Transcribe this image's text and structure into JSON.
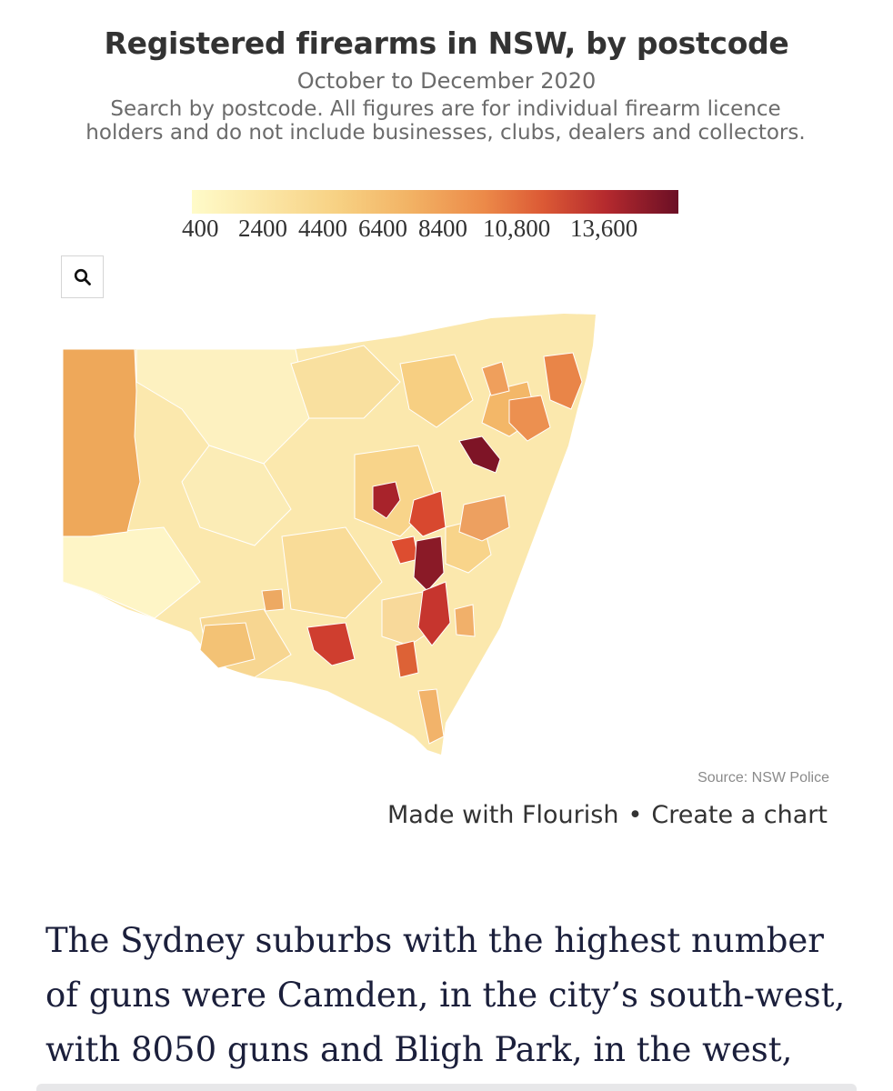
{
  "chart": {
    "title": "Registered firearms in NSW, by postcode",
    "subtitle": "October to December 2020",
    "description": "Search by postcode. All figures are for individual firearm licence holders and do not include businesses, clubs, dealers and collectors.",
    "source": "Source: NSW Police"
  },
  "legend": {
    "labels": [
      "400",
      "2400",
      "4400",
      "6400",
      "8400",
      "10,800",
      "13,600"
    ],
    "colors": [
      "#fffbc9",
      "#fbe2a0",
      "#f6c877",
      "#f0a458",
      "#e7733e",
      "#d4442f",
      "#a01f2c",
      "#6b0f25"
    ]
  },
  "search": {
    "icon": "search-icon"
  },
  "footer": {
    "made_with": "Made with Flourish",
    "separator": "•",
    "create": "Create a chart"
  },
  "article": {
    "text": "The Sydney suburbs with the highest number of guns were Camden, in the city’s south-west, with 8050 guns and Bligh Park, in the west,"
  }
}
